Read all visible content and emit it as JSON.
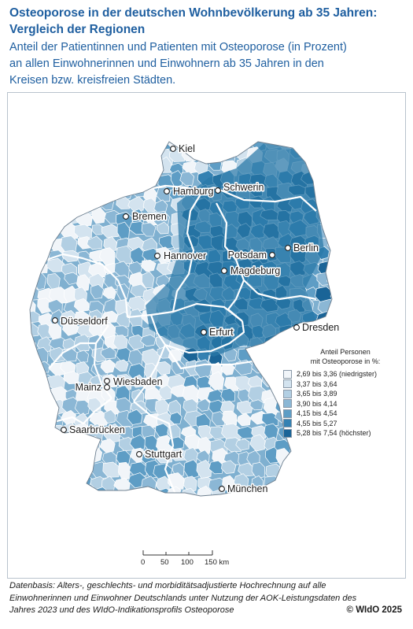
{
  "header": {
    "title_line1": "Osteoporose in der deutschen Wohnbevölkerung ab 35 Jahren:",
    "title_line2": "Vergleich der Regionen",
    "subtitle_line1": "Anteil der Patientinnen und Patienten mit Osteoporose (in Prozent)",
    "subtitle_line2": "an allen Einwohnerinnen und Einwohnern ab 35 Jahren in den",
    "subtitle_line3": "Kreisen bzw. kreisfreien Städten."
  },
  "map": {
    "cities": [
      {
        "name": "Kiel"
      },
      {
        "name": "Hamburg"
      },
      {
        "name": "Schwerin"
      },
      {
        "name": "Bremen"
      },
      {
        "name": "Hannover"
      },
      {
        "name": "Potsdam"
      },
      {
        "name": "Berlin"
      },
      {
        "name": "Magdeburg"
      },
      {
        "name": "Düsseldorf"
      },
      {
        "name": "Dresden"
      },
      {
        "name": "Erfurt"
      },
      {
        "name": "Mainz"
      },
      {
        "name": "Wiesbaden"
      },
      {
        "name": "Saarbrücken"
      },
      {
        "name": "Stuttgart"
      },
      {
        "name": "München"
      }
    ],
    "colors": {
      "land": "#7fb0d0",
      "border": "#ffffff",
      "east_region": "#2a79a8",
      "light_region": "#dbe8f2"
    }
  },
  "legend": {
    "title_line1": "Anteil Personen",
    "title_line2": "mit Osteoporose in %:",
    "classes": [
      {
        "label": "2,69 bis 3,36 (niedrigster)",
        "color": "#f1f5f9"
      },
      {
        "label": "3,37 bis 3,64",
        "color": "#d3e3ef"
      },
      {
        "label": "3,65 bis 3,89",
        "color": "#b2cfe3"
      },
      {
        "label": "3,90 bis 4,14",
        "color": "#8bb7d5"
      },
      {
        "label": "4,15 bis 4,54",
        "color": "#5e9dc5"
      },
      {
        "label": "4,55 bis 5,27",
        "color": "#3481b2"
      },
      {
        "label": "5,28 bis 7,54 (höchster)",
        "color": "#1a6497"
      }
    ]
  },
  "scale": {
    "ticks": [
      "0",
      "50",
      "100",
      "150 km"
    ]
  },
  "footer": {
    "line1": "Datenbasis: Alters-, geschlechts- und morbiditätsadjustierte Hochrechnung auf alle",
    "line2": "Einwohnerinnen und Einwohner Deutschlands unter Nutzung der AOK-Leistungsdaten des",
    "line3": "Jahres 2023 und des WIdO-Indikationsprofils Osteoporose",
    "copyright": "© WIdO 2025"
  }
}
